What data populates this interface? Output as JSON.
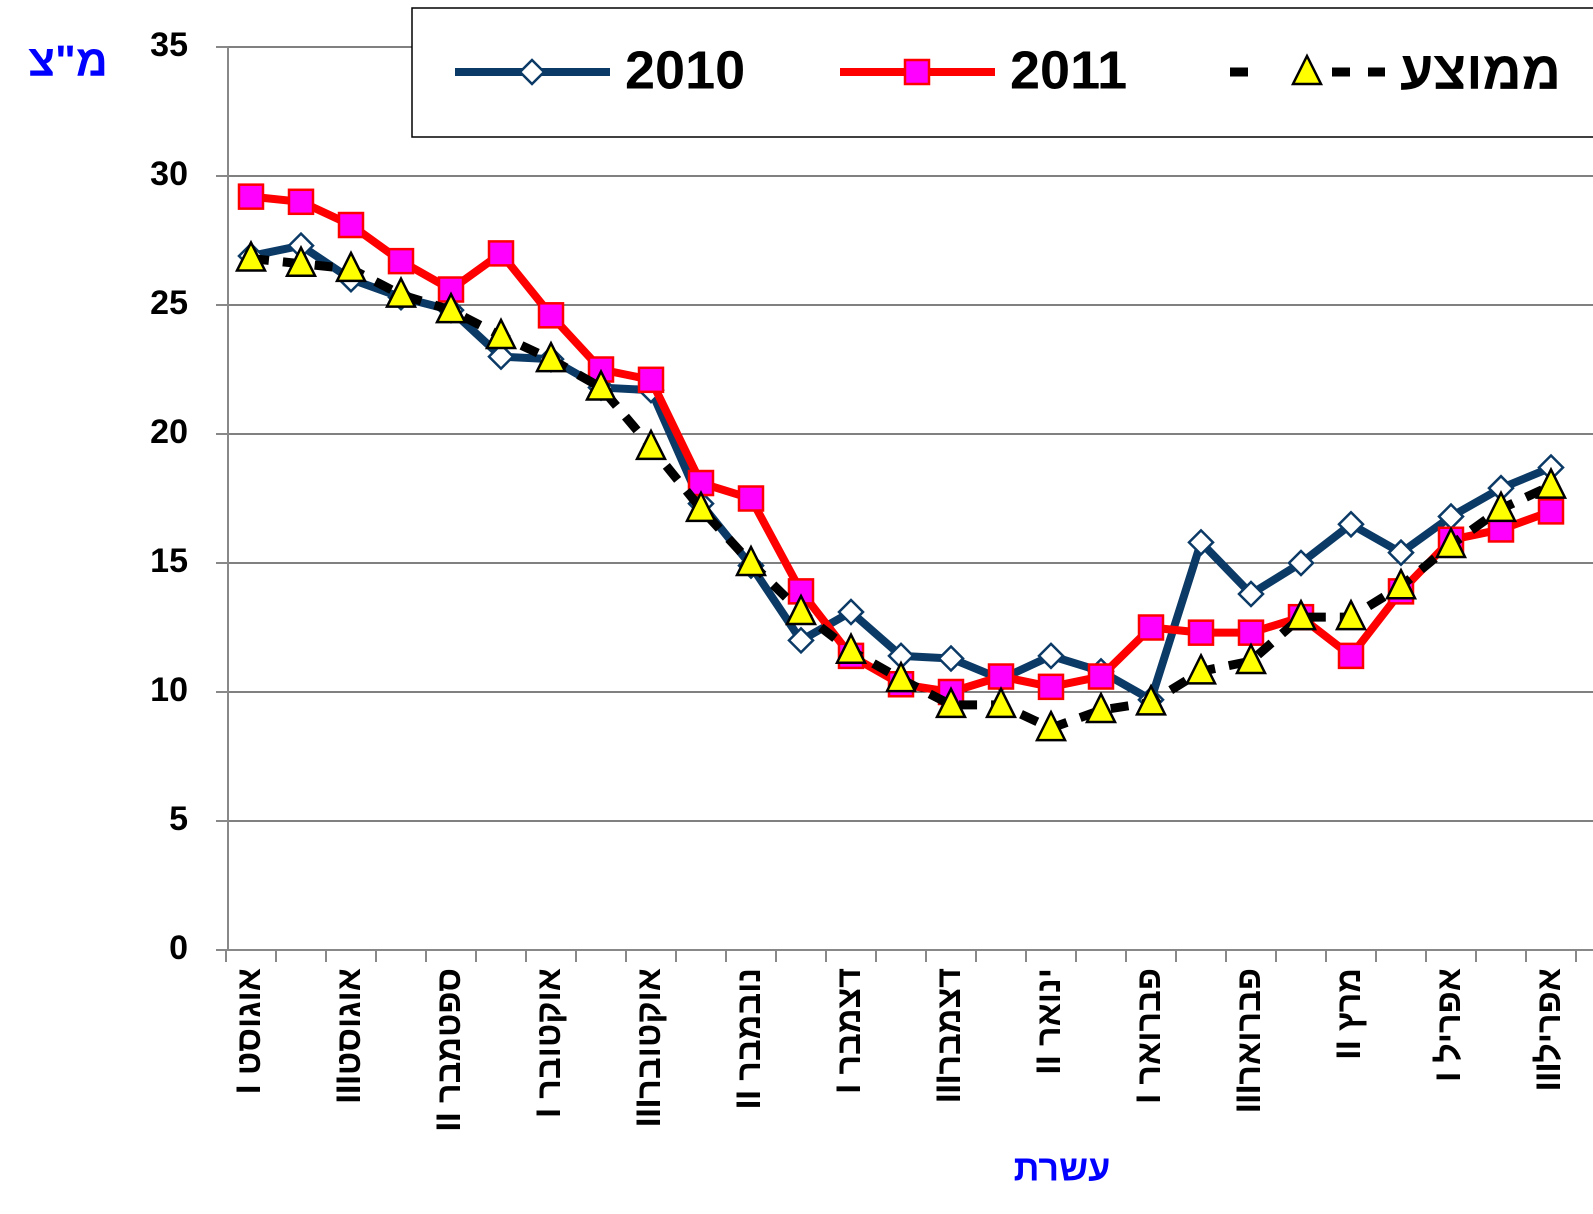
{
  "chart_data": {
    "type": "line",
    "y_label": "מ\"צ",
    "x_label": "עשרת",
    "categories": [
      "אוגוסט I",
      null,
      "אוגוסטIII",
      null,
      "ספטמבר II",
      null,
      "אוקטובר I",
      null,
      "אוקטוברIII",
      null,
      "נובמבר II",
      null,
      "דצמבר I",
      null,
      "דצמברIII",
      null,
      "ינואר II",
      null,
      "פברואר I",
      null,
      "פברוארIII",
      null,
      "מרץ II",
      null,
      "אפריל I",
      null,
      "אפרילIII"
    ],
    "series": [
      {
        "name": "2010",
        "color": "#0b3a66",
        "marker": "diamond",
        "values": [
          26.9,
          27.3,
          26.0,
          25.3,
          24.8,
          23.0,
          22.9,
          21.8,
          21.7,
          17.3,
          14.9,
          12.0,
          13.1,
          11.4,
          11.3,
          10.5,
          11.4,
          10.8,
          9.7,
          15.8,
          13.8,
          15.0,
          16.5,
          15.4,
          16.8,
          17.9,
          18.7
        ]
      },
      {
        "name": "2011",
        "color": "#ff0000",
        "marker": "square",
        "values": [
          29.2,
          29.0,
          28.1,
          26.7,
          25.6,
          27.0,
          24.6,
          22.5,
          22.1,
          18.1,
          17.5,
          13.9,
          11.4,
          10.3,
          10.0,
          10.6,
          10.2,
          10.6,
          12.5,
          12.3,
          12.3,
          12.9,
          11.4,
          13.9,
          15.9,
          16.3,
          17.0
        ]
      },
      {
        "name": "ממוצע",
        "color": "#000000",
        "marker": "triangle",
        "dashed": true,
        "values": [
          26.8,
          26.6,
          26.4,
          25.4,
          24.8,
          23.8,
          22.9,
          21.8,
          19.5,
          17.1,
          15.0,
          13.1,
          11.6,
          10.5,
          9.5,
          9.5,
          8.6,
          9.3,
          9.6,
          10.8,
          11.2,
          12.9,
          12.9,
          14.1,
          15.7,
          17.1,
          18.0
        ]
      }
    ],
    "ylim": [
      0,
      35
    ],
    "yticks": [
      0,
      5,
      10,
      15,
      20,
      25,
      30,
      35
    ],
    "grid": true,
    "legend": "top"
  }
}
